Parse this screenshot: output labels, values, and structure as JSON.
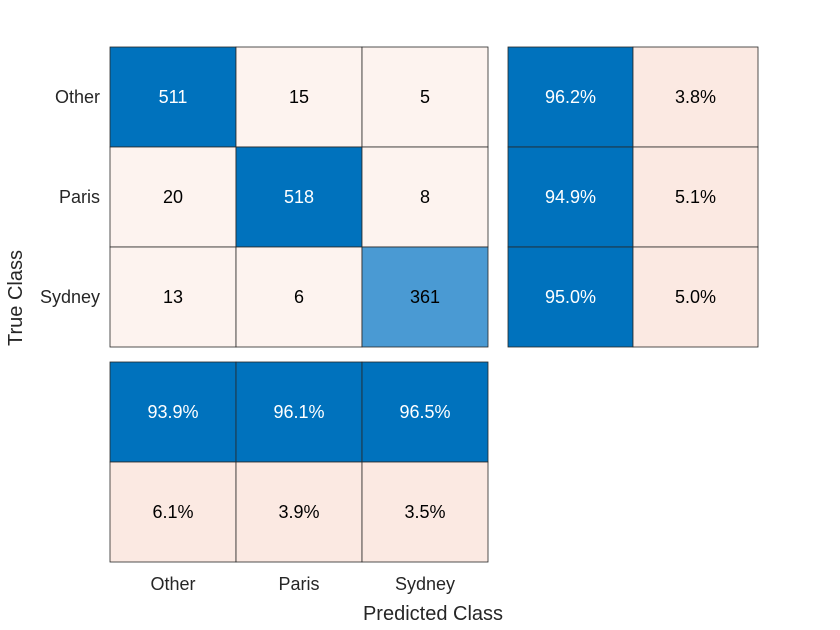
{
  "chart_data": {
    "type": "heatmap",
    "title": "",
    "xlabel": "Predicted Class",
    "ylabel": "True Class",
    "classes": [
      "Other",
      "Paris",
      "Sydney"
    ],
    "confusion_matrix": [
      [
        511,
        15,
        5
      ],
      [
        20,
        518,
        8
      ],
      [
        13,
        6,
        361
      ]
    ],
    "row_summary": [
      [
        "96.2%",
        "3.8%"
      ],
      [
        "94.9%",
        "5.1%"
      ],
      [
        "95.0%",
        "5.0%"
      ]
    ],
    "column_summary": [
      [
        "93.9%",
        "96.1%",
        "96.5%"
      ],
      [
        "6.1%",
        "3.9%",
        "3.5%"
      ]
    ],
    "colors": {
      "diagonal_strong": "#0072bd",
      "diagonal_medium": "#4a9ad3",
      "offdiagonal_light": "#fdf3ef",
      "error_light": "#fbe9e2",
      "cell_border": "#262626",
      "text_light": "#ffffff",
      "text_dark": "#000000"
    }
  }
}
